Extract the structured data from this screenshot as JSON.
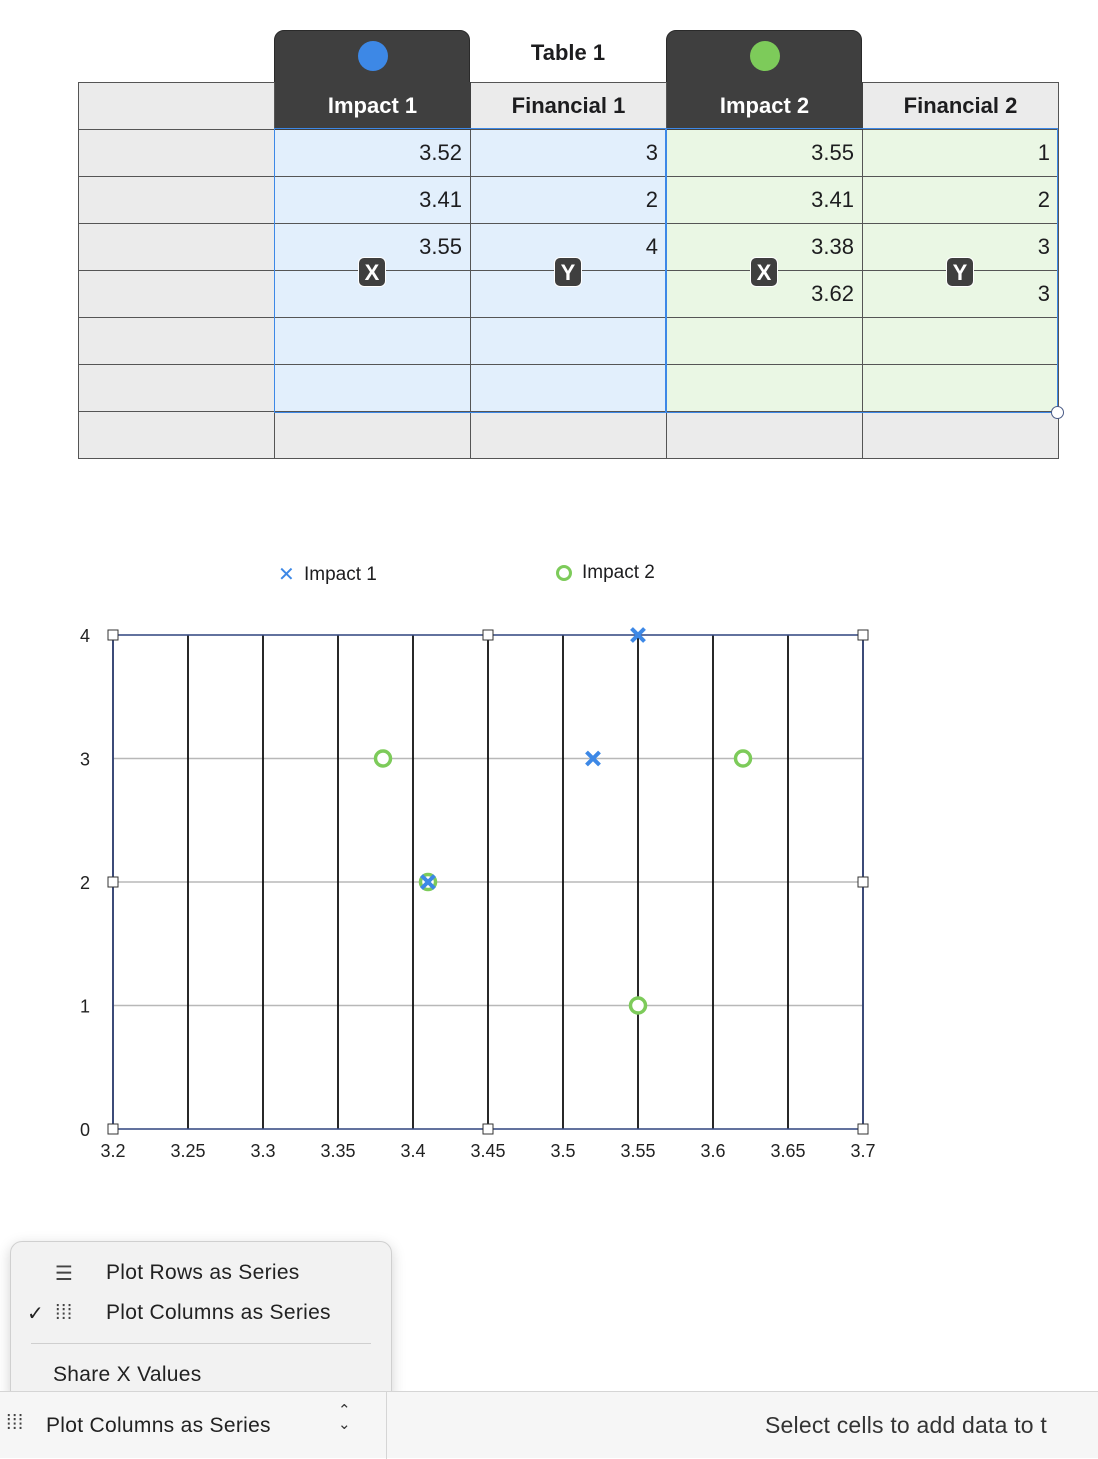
{
  "table": {
    "title": "Table 1",
    "headers": [
      "",
      "Impact 1",
      "Financial 1",
      "Impact 2",
      "Financial 2"
    ],
    "rows": [
      [
        "",
        "3.52",
        "3",
        "3.55",
        "1"
      ],
      [
        "",
        "3.41",
        "2",
        "3.41",
        "2"
      ],
      [
        "",
        "3.55",
        "4",
        "3.38",
        "3"
      ],
      [
        "",
        "",
        "",
        "3.62",
        "3"
      ],
      [
        "",
        "",
        "",
        "",
        ""
      ],
      [
        "",
        "",
        "",
        "",
        ""
      ],
      [
        "",
        "",
        "",
        "",
        ""
      ]
    ],
    "axis_badges": [
      "X",
      "Y",
      "X",
      "Y"
    ],
    "series_colors": {
      "impact1": "#3d88e6",
      "impact2": "#7dcb5a"
    }
  },
  "legend": {
    "impact1": "Impact 1",
    "impact2": "Impact 2"
  },
  "chart_data": {
    "type": "scatter",
    "xlim": [
      3.2,
      3.7
    ],
    "ylim": [
      0,
      4
    ],
    "x_ticks": [
      "3.2",
      "3.25",
      "3.3",
      "3.35",
      "3.4",
      "3.45",
      "3.5",
      "3.55",
      "3.6",
      "3.65",
      "3.7"
    ],
    "y_ticks": [
      "0",
      "1",
      "2",
      "3",
      "4"
    ],
    "grid": true,
    "legend_position": "top",
    "series": [
      {
        "name": "Impact 1",
        "marker": "x",
        "color": "#3d88e6",
        "points": [
          {
            "x": 3.52,
            "y": 3
          },
          {
            "x": 3.41,
            "y": 2
          },
          {
            "x": 3.55,
            "y": 4
          }
        ]
      },
      {
        "name": "Impact 2",
        "marker": "circle",
        "color": "#7dcb5a",
        "points": [
          {
            "x": 3.55,
            "y": 1
          },
          {
            "x": 3.41,
            "y": 2
          },
          {
            "x": 3.38,
            "y": 3
          },
          {
            "x": 3.62,
            "y": 3
          }
        ]
      }
    ]
  },
  "menu": {
    "items": [
      {
        "label": "Plot Rows as Series",
        "checked": false,
        "icon": "rows-icon"
      },
      {
        "label": "Plot Columns as Series",
        "checked": true,
        "icon": "columns-icon"
      },
      {
        "label": "Share X Values",
        "checked": false,
        "icon": ""
      }
    ]
  },
  "bottom": {
    "popup_label": "Plot Columns as Series",
    "status": "Select cells to add data to t"
  }
}
